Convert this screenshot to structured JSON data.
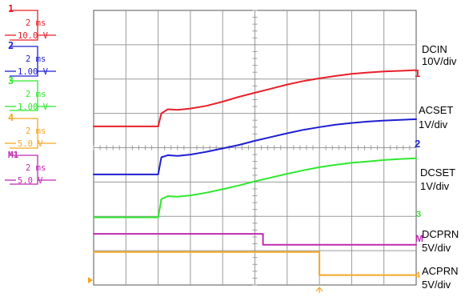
{
  "chart_data": {
    "type": "line",
    "title": "",
    "xlabel": "",
    "ylabel": "",
    "grid": true,
    "time_divisions": 10,
    "vertical_divisions": 8,
    "channels": [
      {
        "number": "1",
        "timebase": "2 ms",
        "scale": "10.0 V",
        "color": "#e8202a",
        "name": "DCIN",
        "per_div": "10V/div",
        "marker": "1"
      },
      {
        "number": "2",
        "timebase": "2 ms",
        "scale": "1.00 V",
        "color": "#1e1ed2",
        "name": "ACSET",
        "per_div": "1V/div",
        "marker": "2"
      },
      {
        "number": "3",
        "timebase": "2 ms",
        "scale": "1.00 V",
        "color": "#2ee82e",
        "name": "DCSET",
        "per_div": "1V/div",
        "marker": "3"
      },
      {
        "number": "4",
        "timebase": "2 ms",
        "scale": "5.0 V",
        "color": "#f5a623",
        "name": "ACPRN",
        "per_div": "5V/div",
        "marker": "4"
      },
      {
        "number": "M1",
        "timebase": "2 ms",
        "scale": "5.0 V",
        "color": "#c02ab0",
        "name": "DCPRN",
        "per_div": "5V/div",
        "marker": "M"
      }
    ],
    "series": [
      {
        "name": "DCIN",
        "points": [
          [
            0,
            0.62
          ],
          [
            2.0,
            0.62
          ],
          [
            2.1,
            1.0
          ],
          [
            2.3,
            1.12
          ],
          [
            2.6,
            1.1
          ],
          [
            3.0,
            1.14
          ],
          [
            3.5,
            1.22
          ],
          [
            4.0,
            1.34
          ],
          [
            4.5,
            1.48
          ],
          [
            5.0,
            1.6
          ],
          [
            5.5,
            1.72
          ],
          [
            6.0,
            1.84
          ],
          [
            6.5,
            1.94
          ],
          [
            7.0,
            2.02
          ],
          [
            7.5,
            2.09
          ],
          [
            8.0,
            2.15
          ],
          [
            8.5,
            2.19
          ],
          [
            9.0,
            2.22
          ],
          [
            9.5,
            2.24
          ],
          [
            10.0,
            2.26
          ]
        ]
      },
      {
        "name": "ACSET",
        "points": [
          [
            0,
            -0.78
          ],
          [
            2.0,
            -0.78
          ],
          [
            2.1,
            -0.28
          ],
          [
            2.3,
            -0.22
          ],
          [
            2.6,
            -0.24
          ],
          [
            3.0,
            -0.2
          ],
          [
            3.5,
            -0.12
          ],
          [
            4.0,
            -0.02
          ],
          [
            4.5,
            0.08
          ],
          [
            5.0,
            0.2
          ],
          [
            5.5,
            0.31
          ],
          [
            6.0,
            0.42
          ],
          [
            6.5,
            0.52
          ],
          [
            7.0,
            0.6
          ],
          [
            7.5,
            0.67
          ],
          [
            8.0,
            0.72
          ],
          [
            8.5,
            0.76
          ],
          [
            9.0,
            0.79
          ],
          [
            9.5,
            0.81
          ],
          [
            10.0,
            0.83
          ]
        ]
      },
      {
        "name": "DCSET",
        "points": [
          [
            0,
            -2.03
          ],
          [
            2.0,
            -2.03
          ],
          [
            2.1,
            -1.5
          ],
          [
            2.3,
            -1.41
          ],
          [
            2.6,
            -1.43
          ],
          [
            3.0,
            -1.39
          ],
          [
            3.5,
            -1.31
          ],
          [
            4.0,
            -1.21
          ],
          [
            4.5,
            -1.1
          ],
          [
            5.0,
            -0.98
          ],
          [
            5.5,
            -0.87
          ],
          [
            6.0,
            -0.76
          ],
          [
            6.5,
            -0.66
          ],
          [
            7.0,
            -0.57
          ],
          [
            7.5,
            -0.5
          ],
          [
            8.0,
            -0.44
          ],
          [
            8.5,
            -0.4
          ],
          [
            9.0,
            -0.36
          ],
          [
            9.5,
            -0.33
          ],
          [
            10.0,
            -0.31
          ]
        ]
      },
      {
        "name": "DCPRN",
        "points": [
          [
            0,
            -2.51
          ],
          [
            5.25,
            -2.51
          ],
          [
            5.25,
            -2.83
          ],
          [
            10.0,
            -2.83
          ]
        ]
      },
      {
        "name": "ACPRN",
        "points": [
          [
            0,
            -3.04
          ],
          [
            7.0,
            -3.04
          ],
          [
            7.0,
            -3.71
          ],
          [
            10.0,
            -3.71
          ]
        ]
      }
    ],
    "trigger_time_div": 7.0
  }
}
